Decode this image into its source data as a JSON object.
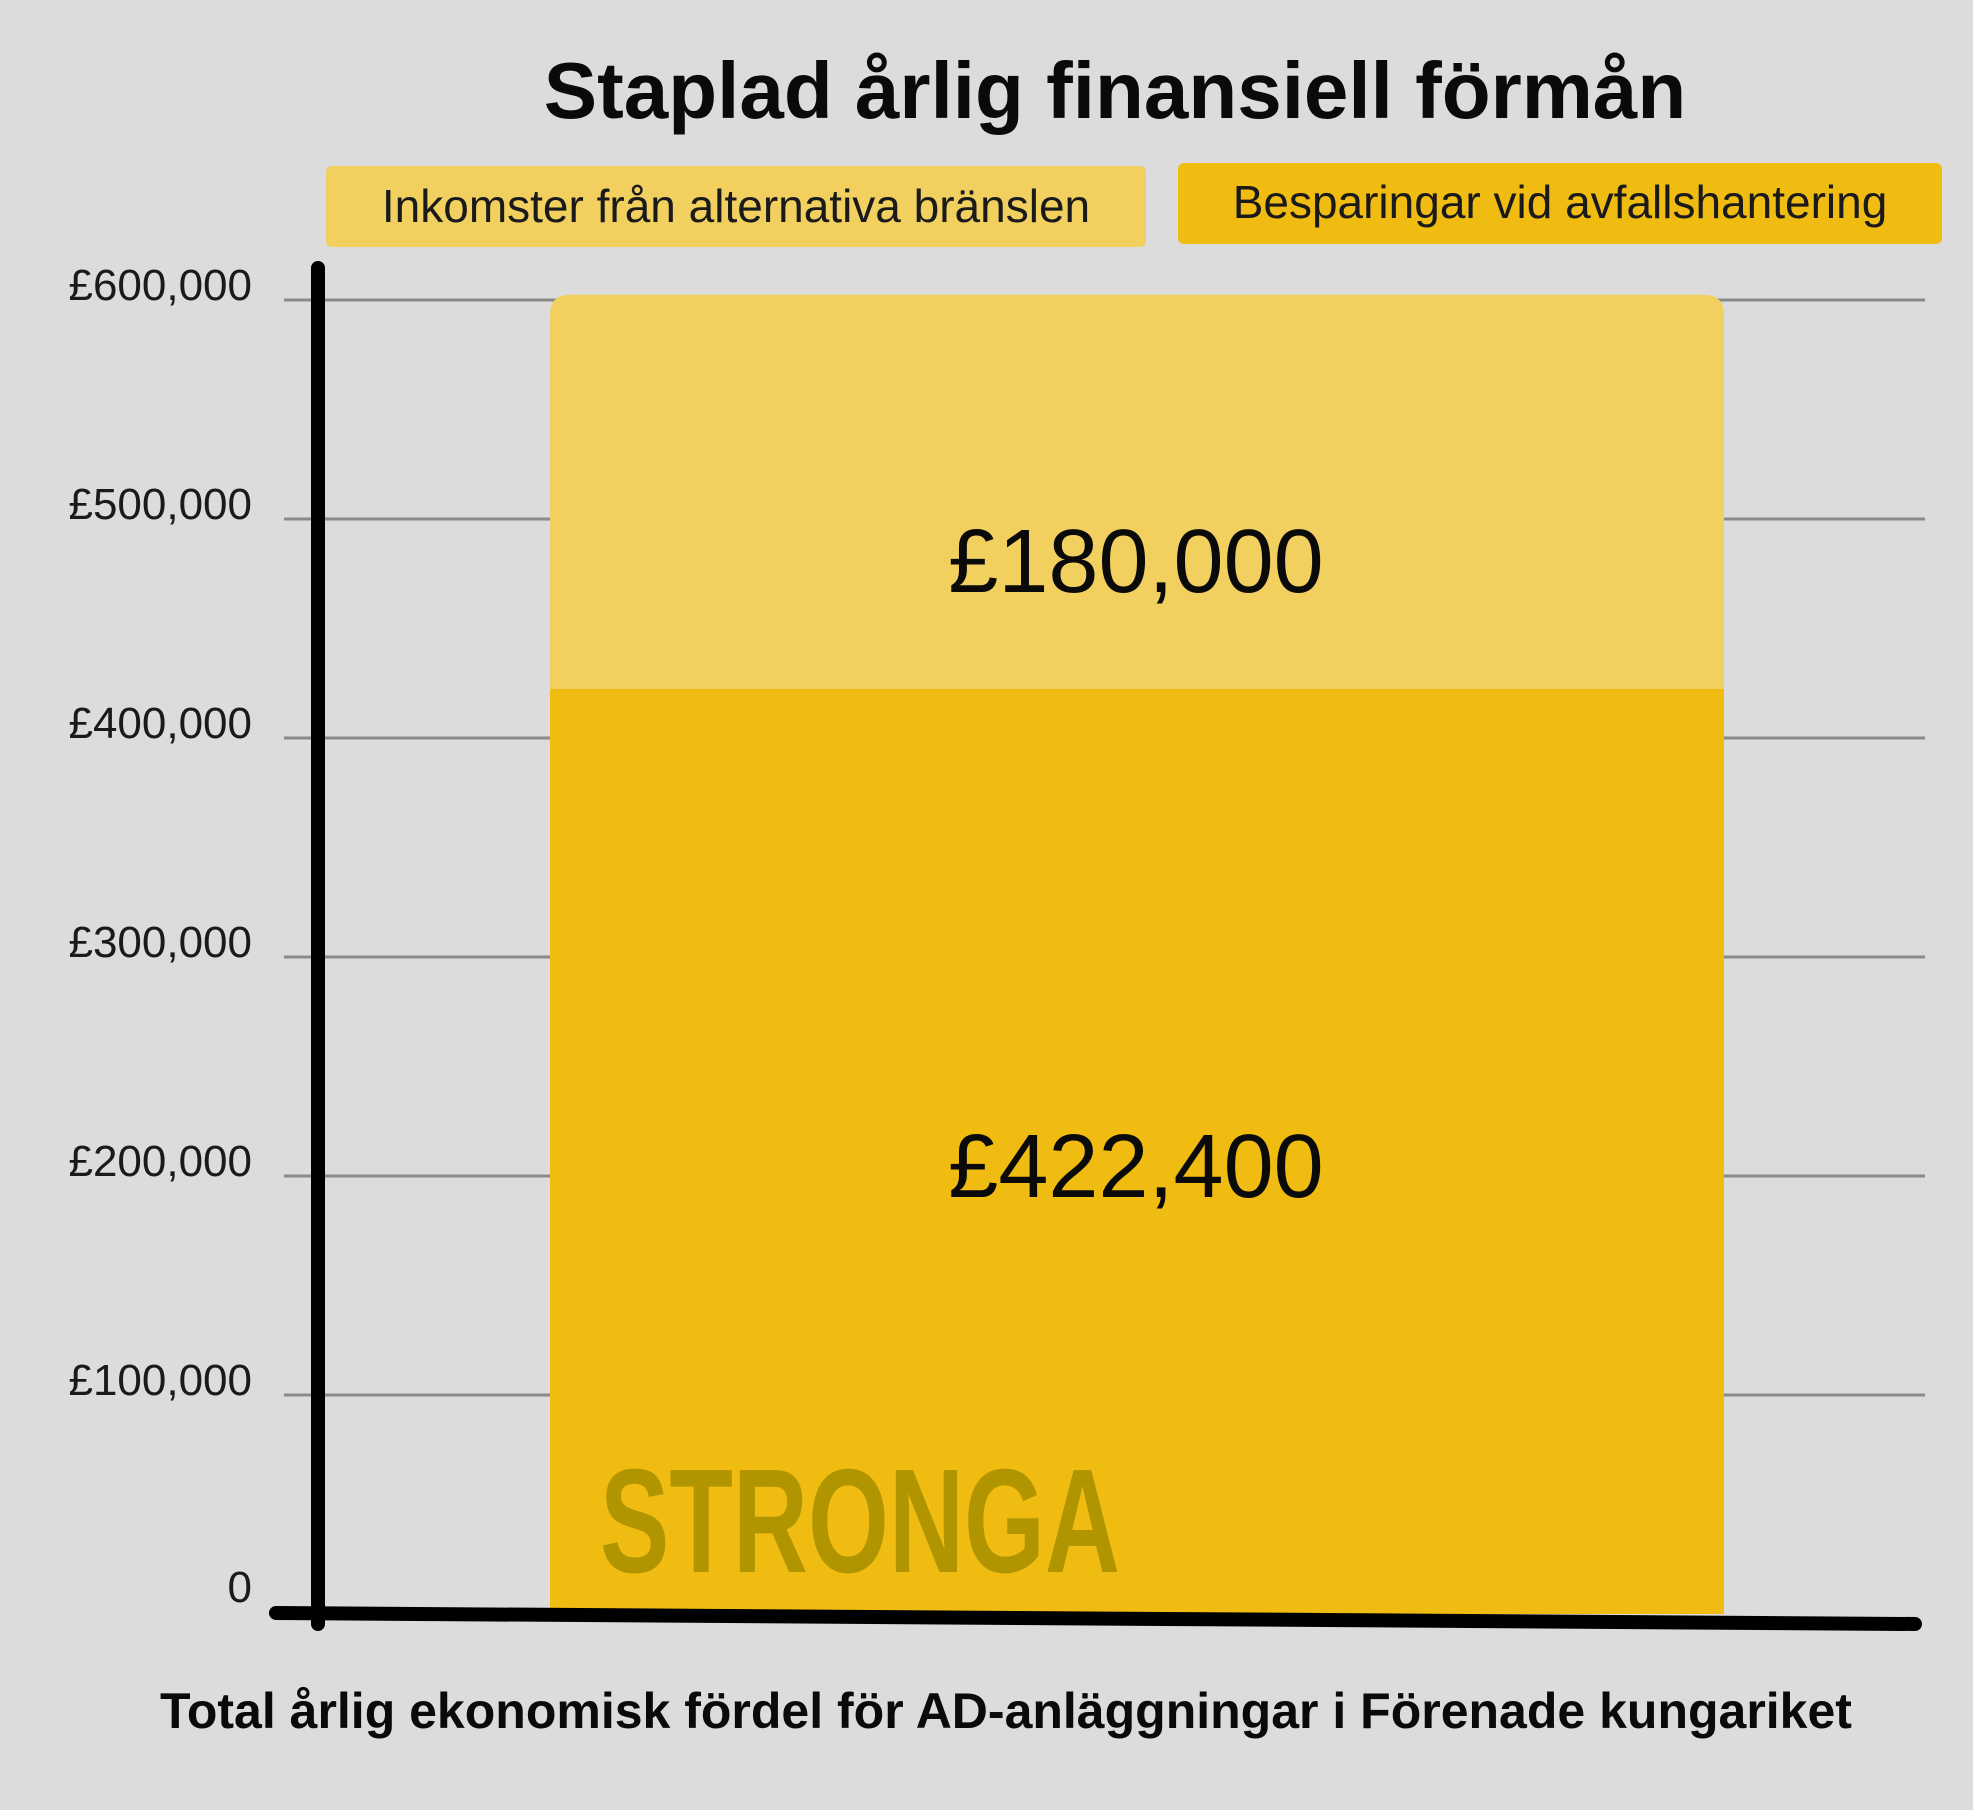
{
  "chart_data": {
    "type": "bar",
    "stacked": true,
    "title": "Staplad årlig finansiell förmån",
    "xlabel": "Total årlig ekonomisk fördel för AD-anläggningar i Förenade kungariket",
    "ylabel": "",
    "ylim": [
      0,
      600000
    ],
    "yticks": [
      0,
      100000,
      200000,
      300000,
      400000,
      500000,
      600000
    ],
    "ytick_labels": [
      "0",
      "£100,000",
      "£200,000",
      "£300,000",
      "£400,000",
      "£500,000",
      "£600,000"
    ],
    "grid": true,
    "legend_position": "top",
    "series": [
      {
        "name": "Besparingar vid avfallshantering",
        "values": [
          422400
        ],
        "label": "£422,400",
        "color": "#f0bc12"
      },
      {
        "name": "Inkomster från alternativa bränslen",
        "values": [
          180000
        ],
        "label": "£180,000",
        "color": "#f2d060"
      }
    ],
    "watermark": "STRONGA"
  }
}
